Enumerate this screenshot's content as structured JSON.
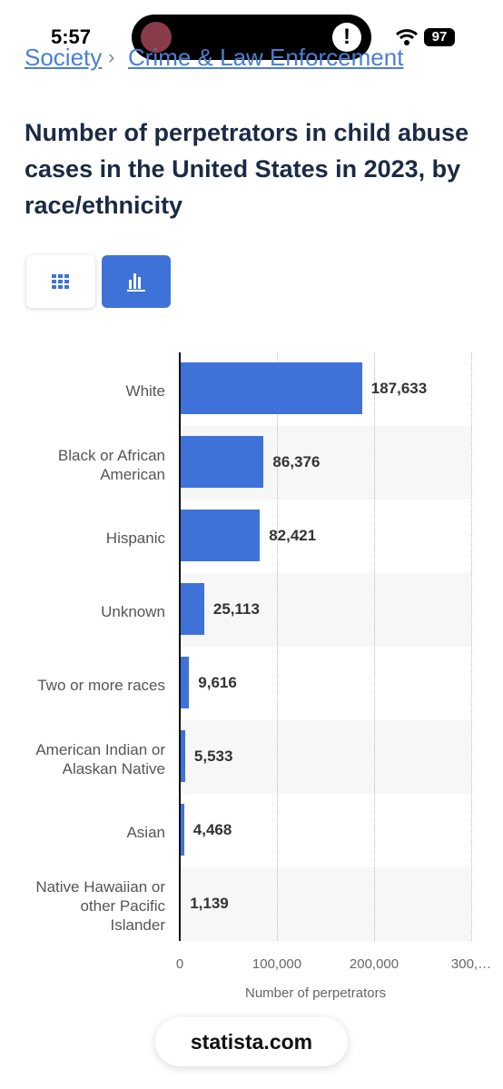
{
  "status_bar": {
    "time": "5:57",
    "battery": "97"
  },
  "breadcrumb": {
    "items": [
      "Society",
      "Crime & Law Enforcement"
    ],
    "separator": "›"
  },
  "chart_data": {
    "type": "bar",
    "orientation": "horizontal",
    "title": "Number of perpetrators in child abuse cases in the United States in 2023, by race/ethnicity",
    "categories": [
      "White",
      "Black or African American",
      "Hispanic",
      "Unknown",
      "Two or more races",
      "American Indian or Alaskan Native",
      "Asian",
      "Native Hawaiian or other Pacific Islander"
    ],
    "values": [
      187633,
      86376,
      82421,
      25113,
      9616,
      5533,
      4468,
      1139
    ],
    "value_labels": [
      "187,633",
      "86,376",
      "82,421",
      "25,113",
      "9,616",
      "5,533",
      "4,468",
      "1,139"
    ],
    "color": "#3f72d8",
    "xlim": [
      0,
      300000
    ],
    "xticks": [
      0,
      {
        "value": 100000,
        "label": "100,000"
      },
      {
        "value": 200000,
        "label": "200,000"
      },
      {
        "value": 300000,
        "label": "300,…"
      }
    ],
    "xlabel": "Number of perpetrators",
    "grid": true
  },
  "footer": {
    "site": "statista.com"
  }
}
